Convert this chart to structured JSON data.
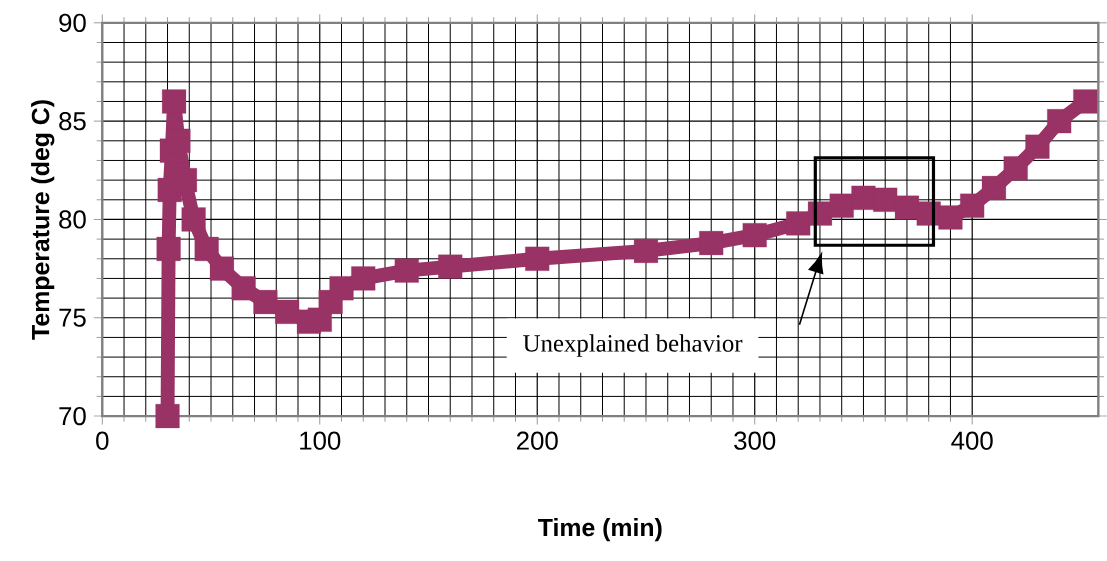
{
  "chart_data": {
    "type": "line",
    "xlabel": "Time (min)",
    "ylabel": "Temperature (deg C)",
    "xlim": [
      0,
      458
    ],
    "ylim": [
      70,
      90
    ],
    "xticks": [
      0,
      100,
      200,
      300,
      400
    ],
    "yticks": [
      70,
      75,
      80,
      85,
      90
    ],
    "grid": true,
    "marker": "square",
    "line_style": "solid",
    "series": [
      {
        "color": "#993366",
        "x": [
          30,
          30.5,
          31,
          32,
          33,
          35,
          38,
          42,
          48,
          55,
          65,
          75,
          85,
          95,
          100,
          105,
          110,
          120,
          140,
          160,
          200,
          250,
          280,
          300,
          320,
          330,
          340,
          350,
          360,
          370,
          380,
          390,
          400,
          410,
          420,
          430,
          440,
          452
        ],
        "values": [
          70,
          78.5,
          81.5,
          83.5,
          86,
          84,
          82,
          80,
          78.5,
          77.5,
          76.5,
          75.8,
          75.3,
          74.8,
          74.9,
          75.8,
          76.5,
          77,
          77.4,
          77.6,
          78,
          78.4,
          78.8,
          79.2,
          79.8,
          80.3,
          80.7,
          81.1,
          81,
          80.6,
          80.3,
          80.1,
          80.7,
          81.6,
          82.6,
          83.7,
          85,
          86
        ]
      }
    ],
    "annotations": [
      "Unexplained behavior"
    ]
  }
}
